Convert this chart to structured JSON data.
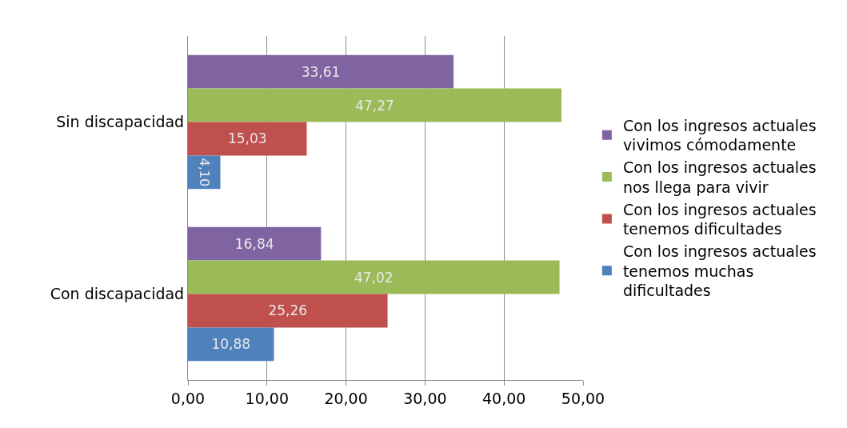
{
  "chart_data": {
    "type": "bar",
    "orientation": "horizontal",
    "categories": [
      "Sin discapacidad",
      "Con discapacidad"
    ],
    "series": [
      {
        "name": "Con los ingresos actuales vivimos cómodamente",
        "color": "#8064a2",
        "values": [
          33.61,
          16.84
        ],
        "value_labels": [
          "33,61",
          "16,84"
        ]
      },
      {
        "name": "Con los ingresos actuales nos llega para vivir",
        "color": "#9bbb59",
        "values": [
          47.27,
          47.02
        ],
        "value_labels": [
          "47,27",
          "47,02"
        ]
      },
      {
        "name": "Con los ingresos actuales tenemos dificultades",
        "color": "#c0504d",
        "values": [
          15.03,
          25.26
        ],
        "value_labels": [
          "15,03",
          "25,26"
        ]
      },
      {
        "name": "Con los ingresos actuales tenemos muchas dificultades",
        "color": "#4f81bd",
        "values": [
          4.1,
          10.88
        ],
        "value_labels": [
          "4,10",
          "10,88"
        ]
      }
    ],
    "xlim": [
      0,
      50
    ],
    "xticks": [
      {
        "value": 0,
        "label": "0,00"
      },
      {
        "value": 10,
        "label": "10,00"
      },
      {
        "value": 20,
        "label": "20,00"
      },
      {
        "value": 30,
        "label": "30,00"
      },
      {
        "value": 40,
        "label": "40,00"
      },
      {
        "value": 50,
        "label": "50,00"
      }
    ],
    "grid": "x",
    "legend": "right"
  }
}
